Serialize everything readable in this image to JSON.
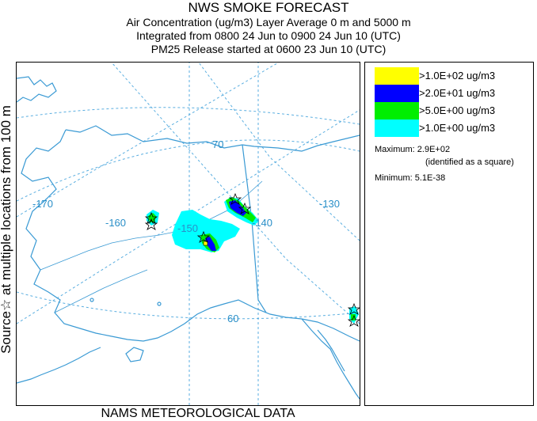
{
  "header": {
    "title": "NWS SMOKE FORECAST",
    "line2": "Air Concentration (ug/m3) Layer Average    0 m and  5000 m",
    "line3": "Integrated from 0800 24 Jun to 0900 24 Jun 10 (UTC)",
    "line4": "PM25 Release started at 0600 23 Jun 10 (UTC)"
  },
  "side_label": "Source☆ at multiple locations  from   100 m",
  "footer": "NAMS METEOROLOGICAL DATA",
  "map": {
    "lon_labels": [
      "-170",
      "-160",
      "-150",
      "-140",
      "-130"
    ],
    "lat_labels": [
      "70",
      "60"
    ],
    "coast_color": "#3a9ad4",
    "grid_color": "#5aaee0"
  },
  "legend": {
    "items": [
      {
        "label": ">1.0E+02 ug/m3",
        "color": "#ffff00"
      },
      {
        "label": ">2.0E+01 ug/m3",
        "color": "#0000ff"
      },
      {
        "label": ">5.0E+00 ug/m3",
        "color": "#00ee00"
      },
      {
        "label": ">1.0E+00 ug/m3",
        "color": "#00ffff"
      }
    ],
    "maximum": "Maximum: 2.9E+02",
    "maximum_note": "(identified as a square)",
    "minimum": "Minimum: 5.1E-38"
  }
}
